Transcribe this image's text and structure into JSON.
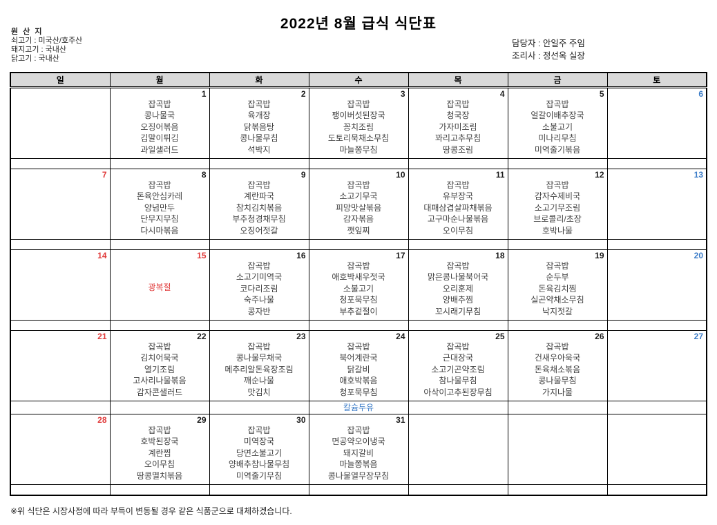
{
  "title": "2022년 8월 급식 식단표",
  "origin": {
    "heading": "원 산 지",
    "items": [
      "쇠고기 : 미국산/호주산",
      "돼지고기 : 국내산",
      "닭고기 : 국내산"
    ]
  },
  "staff": {
    "manager": "담당자 : 안일주 주임",
    "cook": "조리사 : 정선옥 실장"
  },
  "weekdays": [
    "일",
    "월",
    "화",
    "수",
    "목",
    "금",
    "토"
  ],
  "colors": {
    "sunday_date": "#e03a3a",
    "saturday_date": "#3b7cc8",
    "holiday_text": "#e03a3a",
    "milk_note_text": "#3b7cc8",
    "header_background": "#d9d9d9",
    "menu_text": "#404040"
  },
  "weeks": [
    {
      "days": [
        {
          "date": "",
          "menu": []
        },
        {
          "date": "1",
          "menu": [
            "잡곡밥",
            "콩나물국",
            "오징어볶음",
            "김말이튀김",
            "과일샐러드"
          ]
        },
        {
          "date": "2",
          "menu": [
            "잡곡밥",
            "육개장",
            "닭볶음탕",
            "콩나물무침",
            "석박지"
          ]
        },
        {
          "date": "3",
          "menu": [
            "잡곡밥",
            "팽이버섯된장국",
            "꽁치조림",
            "도토리묵채소무침",
            "마늘쫑무침"
          ]
        },
        {
          "date": "4",
          "menu": [
            "잡곡밥",
            "청국장",
            "가자미조림",
            "꽈리고추무침",
            "땅콩조림"
          ]
        },
        {
          "date": "5",
          "menu": [
            "잡곡밥",
            "얼갈이배추장국",
            "소불고기",
            "미나리무침",
            "미역줄기볶음"
          ]
        },
        {
          "date": "6",
          "menu": []
        }
      ],
      "sub": [
        "",
        "",
        "",
        "",
        "",
        "",
        ""
      ]
    },
    {
      "days": [
        {
          "date": "7",
          "menu": []
        },
        {
          "date": "8",
          "menu": [
            "잡곡밥",
            "돈육안심카레",
            "양념만두",
            "단무지무침",
            "다시마볶음"
          ]
        },
        {
          "date": "9",
          "menu": [
            "잡곡밥",
            "계란파국",
            "참치김치볶음",
            "부추청경채무침",
            "오징어젓갈"
          ]
        },
        {
          "date": "10",
          "menu": [
            "잡곡밥",
            "소고기무국",
            "피망맛살볶음",
            "감자볶음",
            "깻잎찌"
          ]
        },
        {
          "date": "11",
          "menu": [
            "잡곡밥",
            "유부장국",
            "대패삼겹살파채볶음",
            "고구마순나물볶음",
            "오이무침"
          ]
        },
        {
          "date": "12",
          "menu": [
            "잡곡밥",
            "감자수제비국",
            "소고기무조림",
            "브로콜리/초장",
            "호박나물"
          ]
        },
        {
          "date": "13",
          "menu": []
        }
      ],
      "sub": [
        "",
        "",
        "",
        "",
        "",
        "",
        ""
      ]
    },
    {
      "days": [
        {
          "date": "14",
          "menu": []
        },
        {
          "date": "15",
          "holiday": "광복절",
          "menu": []
        },
        {
          "date": "16",
          "menu": [
            "잡곡밥",
            "소고기미역국",
            "코다리조림",
            "숙주나물",
            "콩자반"
          ]
        },
        {
          "date": "17",
          "menu": [
            "잡곡밥",
            "애호박새우젓국",
            "소불고기",
            "청포묵무침",
            "부추겉절이"
          ]
        },
        {
          "date": "18",
          "menu": [
            "잡곡밥",
            "맑은콩나물북어국",
            "오리훈제",
            "양배추찜",
            "꼬시래기무침"
          ]
        },
        {
          "date": "19",
          "menu": [
            "잡곡밥",
            "순두부",
            "돈육김치찜",
            "실곤약채소무침",
            "낙지젓갈"
          ]
        },
        {
          "date": "20",
          "menu": []
        }
      ],
      "sub": [
        "",
        "",
        "",
        "",
        "",
        "",
        ""
      ]
    },
    {
      "days": [
        {
          "date": "21",
          "menu": []
        },
        {
          "date": "22",
          "menu": [
            "잡곡밥",
            "김치어묵국",
            "열기조림",
            "고사리나물볶음",
            "감자콘샐러드"
          ]
        },
        {
          "date": "23",
          "menu": [
            "잡곡밥",
            "콩나물무채국",
            "메추리알돈육장조림",
            "깨순나물",
            "맛김치"
          ]
        },
        {
          "date": "24",
          "menu": [
            "잡곡밥",
            "북어계란국",
            "닭갈비",
            "애호박볶음",
            "청포묵무침"
          ]
        },
        {
          "date": "25",
          "menu": [
            "잡곡밥",
            "근대장국",
            "소고기곤약조림",
            "참나물무침",
            "아삭이고추된장무침"
          ]
        },
        {
          "date": "26",
          "menu": [
            "잡곡밥",
            "건새우아욱국",
            "돈육채소볶음",
            "콩나물무침",
            "가지나물"
          ]
        },
        {
          "date": "27",
          "menu": []
        }
      ],
      "sub": [
        "",
        "",
        "",
        "칼슘두유",
        "",
        "",
        ""
      ]
    },
    {
      "days": [
        {
          "date": "28",
          "menu": []
        },
        {
          "date": "29",
          "menu": [
            "잡곡밥",
            "호박된장국",
            "계란찜",
            "오이무침",
            "땅콩멸치볶음"
          ]
        },
        {
          "date": "30",
          "menu": [
            "잡곡밥",
            "미역장국",
            "당면소불고기",
            "양배추참나물무침",
            "미역줄기무침"
          ]
        },
        {
          "date": "31",
          "menu": [
            "잡곡밥",
            "면공약오이냉국",
            "돼지갈비",
            "마늘쫑볶음",
            "콩나물열무장무침"
          ]
        },
        {
          "date": "",
          "menu": []
        },
        {
          "date": "",
          "menu": []
        },
        {
          "date": "",
          "menu": []
        }
      ],
      "sub": [
        "",
        "",
        "",
        "",
        "",
        "",
        ""
      ]
    }
  ],
  "footnote": "※위 식단은 시장사정에 따라 부득이 변동될 경우 같은 식품군으로 대체하겠습니다."
}
